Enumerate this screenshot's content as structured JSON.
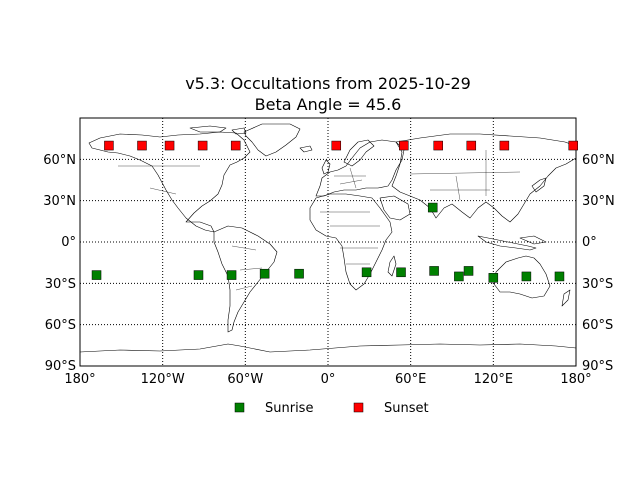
{
  "chart_data": {
    "type": "scatter",
    "title": "v5.3: Occultations from 2025-10-29",
    "subtitle": "Beta Angle = 45.6",
    "xlim": [
      -180,
      180
    ],
    "ylim": [
      -90,
      90
    ],
    "projection": "equirectangular world map with coastlines and country borders",
    "grid": "dotted",
    "x_ticks": [
      {
        "value": -180,
        "label": "180°"
      },
      {
        "value": -120,
        "label": "120°W"
      },
      {
        "value": -60,
        "label": "60°W"
      },
      {
        "value": 0,
        "label": "0°"
      },
      {
        "value": 60,
        "label": "60°E"
      },
      {
        "value": 120,
        "label": "120°E"
      },
      {
        "value": 180,
        "label": "180°"
      }
    ],
    "y_ticks": [
      {
        "value": 60,
        "label": "60°N"
      },
      {
        "value": 30,
        "label": "30°N"
      },
      {
        "value": 0,
        "label": "0°"
      },
      {
        "value": -30,
        "label": "30°S"
      },
      {
        "value": -60,
        "label": "60°S"
      },
      {
        "value": -90,
        "label": "90°S"
      }
    ],
    "legend_position": "bottom-center",
    "series": [
      {
        "name": "Sunrise",
        "color": "#008000",
        "marker": "square",
        "points": [
          {
            "lon": -168,
            "lat": -24
          },
          {
            "lon": -94,
            "lat": -24
          },
          {
            "lon": -70,
            "lat": -24
          },
          {
            "lon": -46,
            "lat": -23
          },
          {
            "lon": -21,
            "lat": -23
          },
          {
            "lon": 28,
            "lat": -22
          },
          {
            "lon": 53,
            "lat": -22
          },
          {
            "lon": 77,
            "lat": -21
          },
          {
            "lon": 102,
            "lat": -21
          },
          {
            "lon": 95,
            "lat": -25
          },
          {
            "lon": 120,
            "lat": -26
          },
          {
            "lon": 144,
            "lat": -25
          },
          {
            "lon": 168,
            "lat": -25
          },
          {
            "lon": 76,
            "lat": 25
          }
        ]
      },
      {
        "name": "Sunset",
        "color": "#ff0000",
        "marker": "square",
        "points": [
          {
            "lon": -159,
            "lat": 70
          },
          {
            "lon": -135,
            "lat": 70
          },
          {
            "lon": -115,
            "lat": 70
          },
          {
            "lon": -91,
            "lat": 70
          },
          {
            "lon": -67,
            "lat": 70
          },
          {
            "lon": 6,
            "lat": 70
          },
          {
            "lon": 55,
            "lat": 70
          },
          {
            "lon": 80,
            "lat": 70
          },
          {
            "lon": 104,
            "lat": 70
          },
          {
            "lon": 128,
            "lat": 70
          },
          {
            "lon": 178,
            "lat": 70
          }
        ]
      }
    ]
  }
}
